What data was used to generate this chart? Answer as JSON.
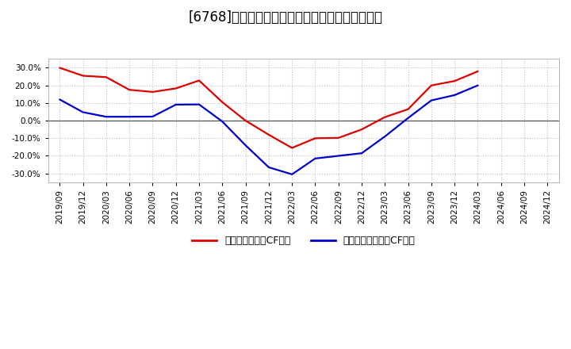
{
  "title": "[6768]　有利子負債キャッシュフロー比率の推移",
  "legend_label_red": "有利子負債営業CF比率",
  "legend_label_blue": "有利子負債フリーCF比率",
  "x_labels": [
    "2019/09",
    "2019/12",
    "2020/03",
    "2020/06",
    "2020/09",
    "2020/12",
    "2021/03",
    "2021/06",
    "2021/09",
    "2021/12",
    "2022/03",
    "2022/06",
    "2022/09",
    "2022/12",
    "2023/03",
    "2023/06",
    "2023/09",
    "2023/12",
    "2024/03",
    "2024/06",
    "2024/09",
    "2024/12"
  ],
  "red_values": [
    0.3,
    0.255,
    0.247,
    0.175,
    0.163,
    0.183,
    0.228,
    0.105,
    0.0,
    -0.08,
    -0.155,
    -0.1,
    -0.098,
    -0.05,
    0.02,
    0.065,
    0.2,
    0.225,
    0.28,
    null,
    null,
    null
  ],
  "blue_values": [
    0.12,
    0.048,
    0.022,
    0.022,
    0.023,
    0.091,
    0.092,
    -0.005,
    -0.14,
    -0.265,
    -0.305,
    -0.215,
    -0.2,
    -0.185,
    -0.09,
    0.015,
    0.115,
    0.145,
    0.2,
    null,
    null,
    null
  ],
  "ylim": [
    -0.35,
    0.35
  ],
  "yticks": [
    -0.3,
    -0.2,
    -0.1,
    0.0,
    0.1,
    0.2,
    0.3
  ],
  "red_color": "#dd0000",
  "blue_color": "#0000cc",
  "background_color": "#ffffff",
  "plot_bg_color": "#ffffff",
  "grid_color": "#bbbbbb",
  "title_fontsize": 12,
  "tick_fontsize": 7.5,
  "legend_fontsize": 9
}
